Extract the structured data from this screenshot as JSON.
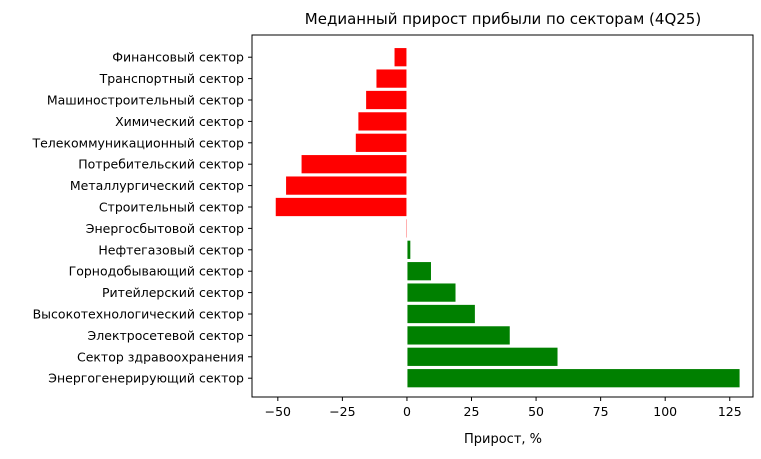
{
  "chart_data": {
    "type": "bar",
    "orientation": "horizontal",
    "title": "Медианный прирост прибыли по секторам (4Q25)",
    "xlabel": "Прирост, %",
    "ylabel": "",
    "xlim": [
      -60,
      134
    ],
    "xticks": [
      -50,
      -25,
      0,
      25,
      50,
      75,
      100,
      125
    ],
    "xtick_labels": [
      "−50",
      "−25",
      "0",
      "25",
      "50",
      "75",
      "100",
      "125"
    ],
    "grid": false,
    "legend": "none",
    "colors": {
      "positive": "#008000",
      "negative": "#ff0000",
      "bar_edge": "#ffffff",
      "axis": "#000000"
    },
    "categories": [
      "Финансовый сектор",
      "Транспортный сектор",
      "Машиностроительный сектор",
      "Химический сектор",
      "Телекоммуникационный сектор",
      "Потребительский сектор",
      "Металлургический сектор",
      "Строительный сектор",
      "Энергосбытовой сектор",
      "Нефтегазовый сектор",
      "Горнодобывающий сектор",
      "Ритейлерский сектор",
      "Высокотехнологический сектор",
      "Электросетевой сектор",
      "Сектор здравоохранения",
      "Энергогенерирующий сектор"
    ],
    "values": [
      -5,
      -12,
      -16,
      -19,
      -20,
      -41,
      -47,
      -51,
      -0.5,
      1.5,
      9.5,
      19,
      26.5,
      40,
      58.5,
      129
    ]
  }
}
